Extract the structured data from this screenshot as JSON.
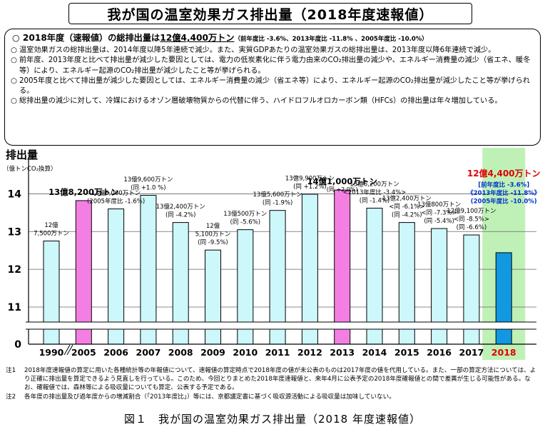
{
  "title": "我が国の温室効果ガス排出量（2018年度速報値）",
  "summary": {
    "headline_mark": "○",
    "headline_a": "2018年度（速報値）の総排出量は",
    "headline_b": "12億4,400万トン",
    "headline_c": "（前年度比 -3.6%、2013年度比 -11.8% 、2005年度比 -10.0%）",
    "bullets": [
      "温室効果ガスの総排出量は、2014年度以降5年連続で減少。また、実質GDPあたりの温室効果ガスの総排出量は、2013年度以降6年連続で減少。",
      "前年度、2013年度と比べて排出量が減少した要因としては、電力の低炭素化に伴う電力由来のCO₂排出量の減少や、エネルギー消費量の減少（省エネ、暖冬等）により、エネルギー起源のCO₂排出量が減少したこと等が挙げられる。",
      "2005年度と比べて排出量が減少した要因としては、エネルギー消費量の減少（省エネ等）により、エネルギー起源のCO₂排出量が減少したこと等が挙げられる。",
      "総排出量の減少に対して、冷媒におけるオゾン層破壊物質からの代替に伴う、ハイドロフルオロカーボン類（HFCs）の排出量は年々増加している。"
    ],
    "bullet_mark": "○"
  },
  "chart_data": {
    "type": "bar",
    "ylabel": "排出量",
    "yunit": "（億トンCO₂換算）",
    "yticks": [
      0,
      11,
      12,
      13,
      14
    ],
    "ylim": [
      11,
      14.5
    ],
    "axis_break": true,
    "categories": [
      "1990",
      "2005",
      "2006",
      "2007",
      "2008",
      "2009",
      "2010",
      "2011",
      "2012",
      "2013",
      "2014",
      "2015",
      "2016",
      "2017",
      "2018"
    ],
    "values": [
      12.75,
      13.82,
      13.6,
      13.96,
      13.24,
      12.51,
      13.05,
      13.56,
      13.99,
      14.1,
      13.62,
      13.24,
      13.08,
      12.91,
      12.44
    ],
    "bar_kinds": [
      "normal",
      "highlight",
      "normal",
      "normal",
      "normal",
      "normal",
      "normal",
      "normal",
      "normal",
      "highlight",
      "normal",
      "normal",
      "normal",
      "normal",
      "current"
    ],
    "label_kinds": [
      "plain",
      "bold",
      "plain",
      "plain",
      "plain",
      "plain",
      "plain",
      "plain",
      "plain",
      "bold",
      "plain",
      "plain",
      "plain",
      "plain",
      "red"
    ],
    "labels": [
      [
        "12億",
        "7,500万トン"
      ],
      [
        "13億8,200万トン"
      ],
      [
        "13億6,000万トン",
        "(2005年度比 -1.6%)"
      ],
      [
        "13億9,600万トン",
        "(同 +1.0 %)"
      ],
      [
        "13億2,400万トン",
        "(同 -4.2%)"
      ],
      [
        "12億",
        "5,100万トン",
        "(同 -9.5%)"
      ],
      [
        "13億500万トン",
        "(同 -5.6%)"
      ],
      [
        "13億5,600万トン",
        "(同 -1.9%)"
      ],
      [
        "13億9,900万トン",
        "(同 +1.2%)"
      ],
      [
        "14億1,000万トン",
        "(同 +2.0%)"
      ],
      [
        "13億6,200万トン",
        "<2013年度比 -3.4%>",
        "(同 -1.4%)"
      ],
      [
        "13億2,400万トン",
        "<同 -6.1%>",
        "(同 -4.2%)"
      ],
      [
        "13億800万トン",
        "<同 -7.3%>",
        "(同 -5.4%)"
      ],
      [
        "12億9,100万トン",
        "<同 -8.5%>",
        "(同 -6.6%)"
      ],
      [
        "12億4,400万トン",
        "[前年度比 -3.6%]",
        "《2013年度比 -11.8%》",
        "(2005年度比 -10.0%)"
      ]
    ],
    "colors": {
      "normal": "#ccf7fb",
      "highlight": "#f47fe3",
      "current": "#1298e0",
      "current_bg": "#bff1b6",
      "red": "#e00000",
      "blue": "#0033cc"
    }
  },
  "notes": [
    {
      "key": "注1",
      "text": "2018年度速報値の算定に用いた各種統計等の年報値について、速報値の算定時点で2018年度の値が未公表のものは2017年度の値を代用している。また、一部の算定方法については、より正確に排出量を算定できるよう見直しを行っている。このため、今回とりまとめた2018年度速報値と、来年4月に公表予定の2018年度確報値との間で差異が生じる可能性がある。なお、確報値では、森林等による吸収量についても算定、公表する予定である。"
    },
    {
      "key": "注2",
      "text": "各年度の排出量及び過年度からの増減割合（「2013年度比」）等には、京都議定書に基づく吸収源活動による吸収量は加味していない。"
    }
  ],
  "caption": "図１　我が国の温室効果ガス排出量（2018 年度速報値）"
}
